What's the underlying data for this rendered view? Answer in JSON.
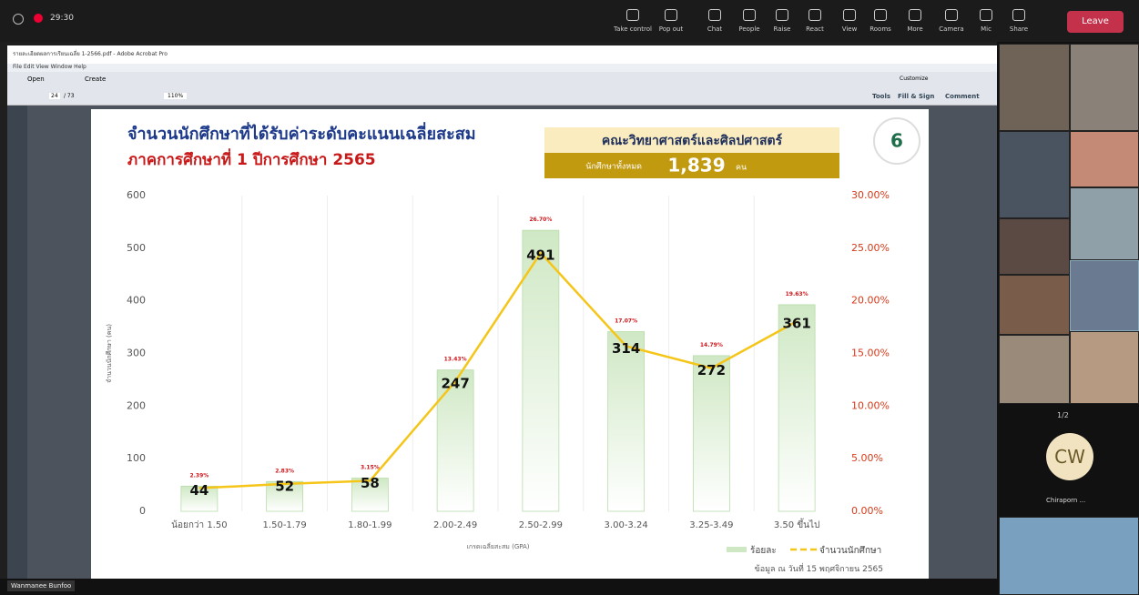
{
  "teams": {
    "timer": "29:30",
    "buttons": [
      "Take control",
      "Pop out",
      "Chat",
      "People",
      "Raise",
      "React",
      "View",
      "Rooms",
      "More",
      "Camera",
      "Mic",
      "Share"
    ],
    "leave": "Leave"
  },
  "acrobat": {
    "title": "รายละเอียดผลการเรียนเฉลี่ย 1-2566.pdf - Adobe Acrobat Pro",
    "menu": "File  Edit  View  Window  Help",
    "open": "Open",
    "create": "Create",
    "page": "24",
    "pages": "/ 73",
    "zoom": "110%",
    "customize": "Customize",
    "tools": "Tools",
    "fill_sign": "Fill & Sign",
    "comment": "Comment"
  },
  "slide": {
    "title1": "จำนวนนักศึกษาที่ได้รับค่าระดับคะแนนเฉลี่ยสะสม",
    "title2": "ภาคการศึกษาที่ 1 ปีการศึกษา 2565",
    "faculty": "คณะวิทยาศาสตร์และศิลปศาสตร์",
    "total_label": "นักศึกษาทั้งหมด",
    "total": "1,839",
    "total_unit": "คน",
    "badge": "6",
    "note": "ข้อมูล ณ วันที่ 15 พฤศจิกายน 2565"
  },
  "chart_data": {
    "type": "bar-line",
    "x_label": "เกรดเฉลี่ยสะสม (GPA)",
    "y_label": "จำนวนนักศึกษา (คน)",
    "categories": [
      "น้อยกว่า 1.50",
      "1.50-1.79",
      "1.80-1.99",
      "2.00-2.49",
      "2.50-2.99",
      "3.00-3.24",
      "3.25-3.49",
      "3.50 ขึ้นไป"
    ],
    "series": [
      {
        "name": "ร้อยละ",
        "type": "bar",
        "axis": "y2",
        "color": "#cfe8c4",
        "values": [
          2.39,
          2.83,
          3.15,
          13.43,
          26.7,
          17.07,
          14.79,
          19.63
        ],
        "value_labels": [
          "2.39%",
          "2.83%",
          "3.15%",
          "13.43%",
          "26.70%",
          "17.07%",
          "14.79%",
          "19.63%"
        ]
      },
      {
        "name": "จำนวนนักศึกษา",
        "type": "line",
        "color": "#f5c518",
        "values": [
          44,
          52,
          58,
          247,
          491,
          314,
          272,
          361
        ]
      }
    ],
    "ylim": [
      0,
      600
    ],
    "yticks": [
      0,
      100,
      200,
      300,
      400,
      500,
      600
    ],
    "y2lim": [
      0,
      30
    ],
    "y2ticks": [
      {
        "value": 0,
        "label": "0.00%"
      },
      {
        "value": 5,
        "label": "5.00%"
      },
      {
        "value": 10,
        "label": "10.00%"
      },
      {
        "value": 15,
        "label": "15.00%"
      },
      {
        "value": 20,
        "label": "20.00%"
      },
      {
        "value": 25,
        "label": "25.00%"
      },
      {
        "value": 30,
        "label": "30.00%"
      }
    ]
  },
  "participants": {
    "pager": "1/2",
    "initials": "CW",
    "name": "Chiraporn ...",
    "presenter": "Wanmanee Bunfoo"
  }
}
